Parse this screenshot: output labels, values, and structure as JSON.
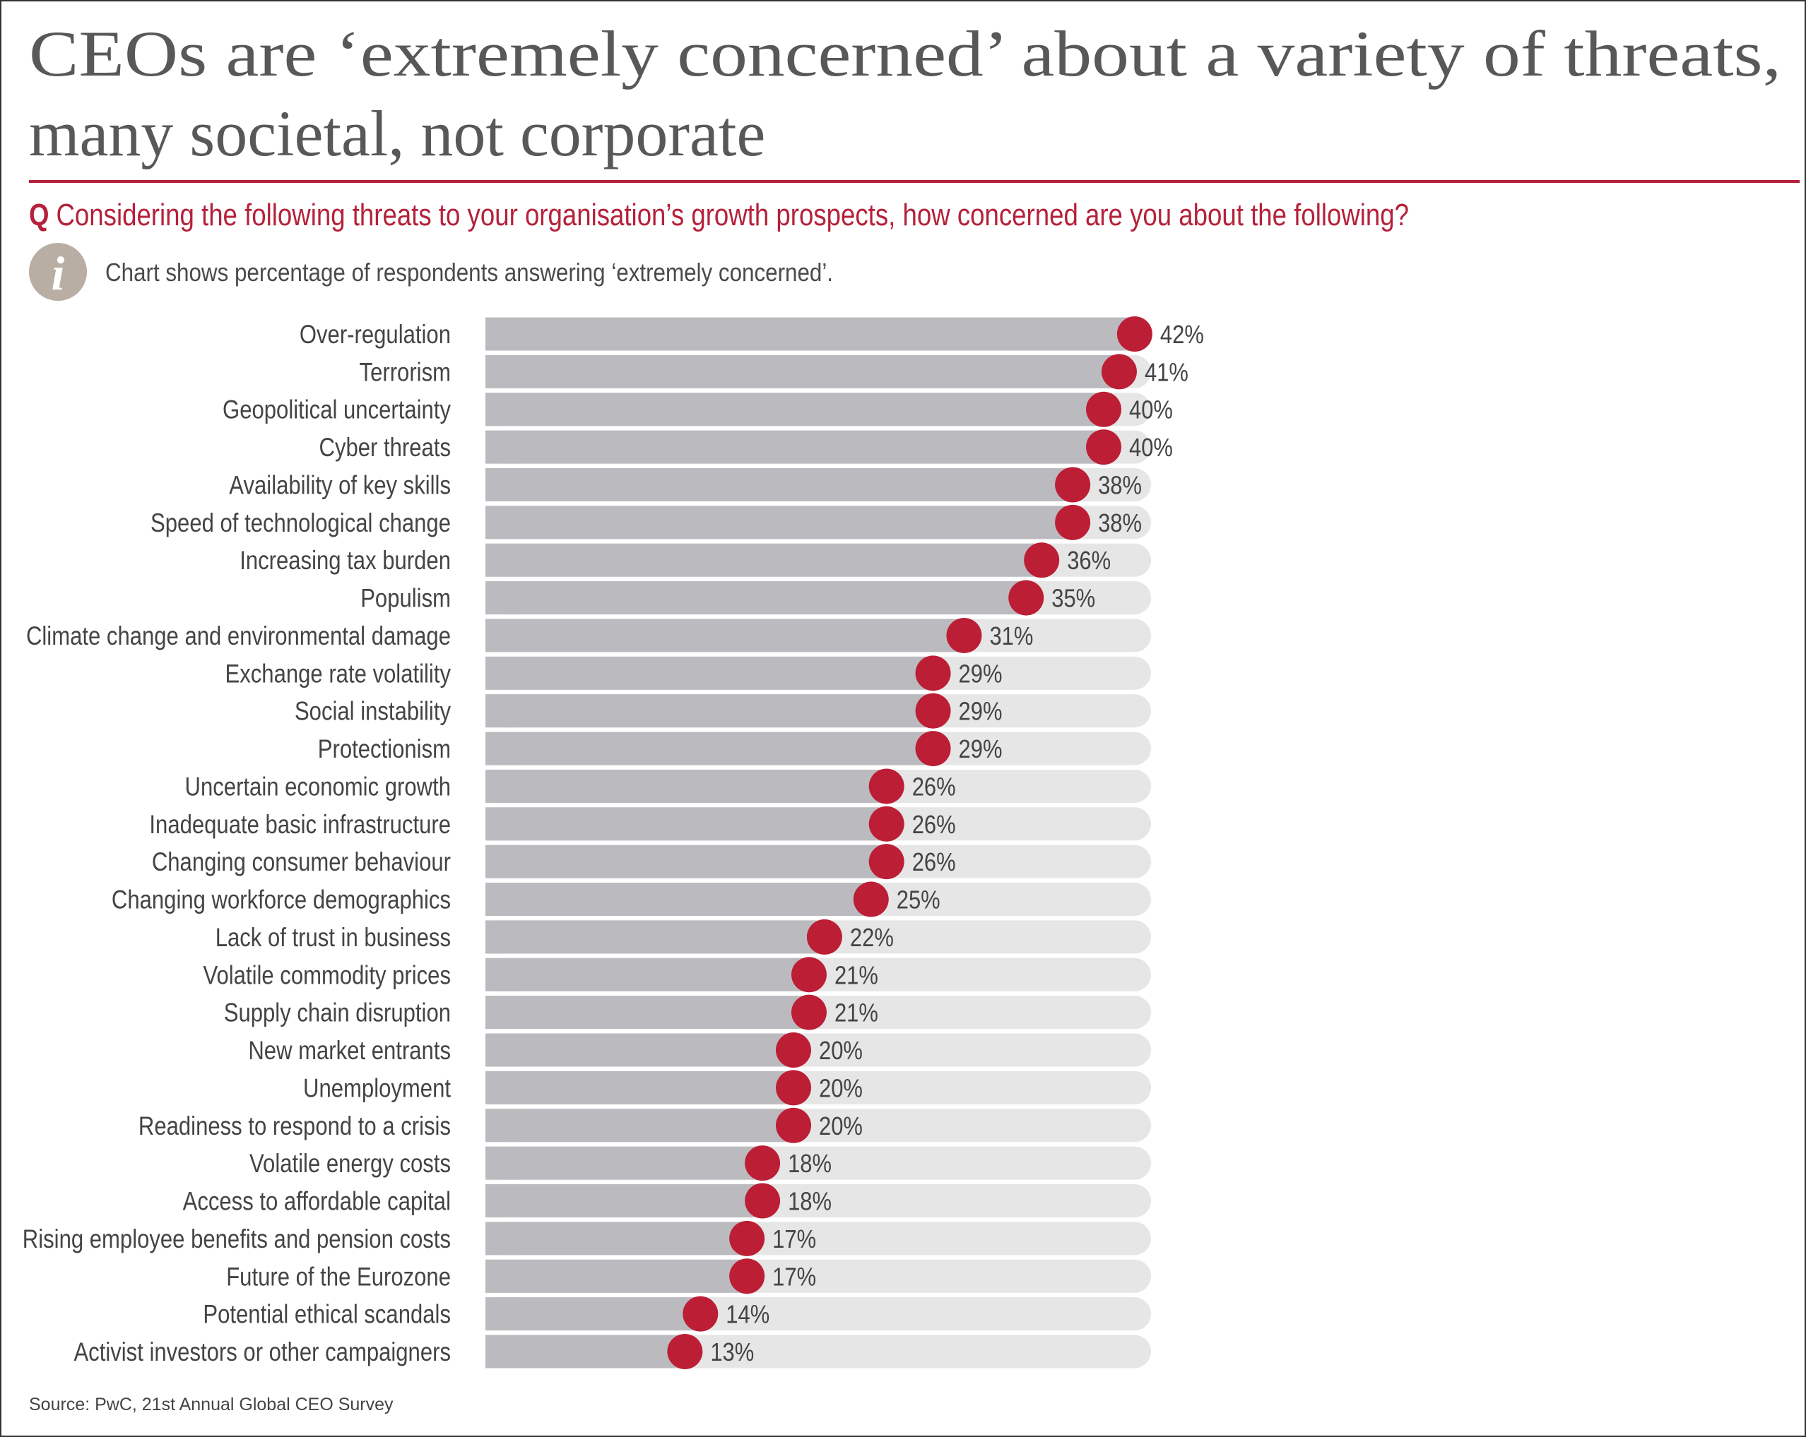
{
  "title": {
    "line1": "CEOs are ‘extremely concerned’ about a variety of threats,",
    "line2": "many societal, not corporate"
  },
  "question": {
    "prefix": "Q",
    "text": "Considering the following threats to your organisation’s growth prospects, how concerned are you about the following?"
  },
  "note": {
    "icon": "info-icon",
    "text": "Chart shows percentage of respondents answering ‘extremely concerned’."
  },
  "source": "Source: PwC, 21st Annual Global CEO Survey",
  "colors": {
    "accent": "#b5213a",
    "dot": "#bc1e35",
    "fill": "#bbbbbf",
    "track": "#e6e6e6",
    "info": "#b8aea4"
  },
  "chart_data": {
    "type": "bar",
    "orientation": "horizontal",
    "unit": "%",
    "xlim": [
      0,
      44
    ],
    "categories": [
      "Over-regulation",
      "Terrorism",
      "Geopolitical uncertainty",
      "Cyber threats",
      "Availability of key skills",
      "Speed of technological change",
      "Increasing tax burden",
      "Populism",
      "Climate change and environmental damage",
      "Exchange rate volatility",
      "Social instability",
      "Protectionism",
      "Uncertain economic growth",
      "Inadequate basic infrastructure",
      "Changing consumer behaviour",
      "Changing workforce demographics",
      "Lack of trust in business",
      "Volatile commodity prices",
      "Supply chain disruption",
      "New market entrants",
      "Unemployment",
      "Readiness to respond to a crisis",
      "Volatile energy costs",
      "Access to affordable capital",
      "Rising employee benefits and pension costs",
      "Future of the Eurozone",
      "Potential ethical scandals",
      "Activist investors or other campaigners"
    ],
    "values": [
      42,
      41,
      40,
      40,
      38,
      38,
      36,
      35,
      31,
      29,
      29,
      29,
      26,
      26,
      26,
      25,
      22,
      21,
      21,
      20,
      20,
      20,
      18,
      18,
      17,
      17,
      14,
      13
    ],
    "labels": [
      "42%",
      "41%",
      "40%",
      "40%",
      "38%",
      "38%",
      "36%",
      "35%",
      "31%",
      "29%",
      "29%",
      "29%",
      "26%",
      "26%",
      "26%",
      "25%",
      "22%",
      "21%",
      "21%",
      "20%",
      "20%",
      "20%",
      "18%",
      "18%",
      "17%",
      "17%",
      "14%",
      "13%"
    ]
  }
}
